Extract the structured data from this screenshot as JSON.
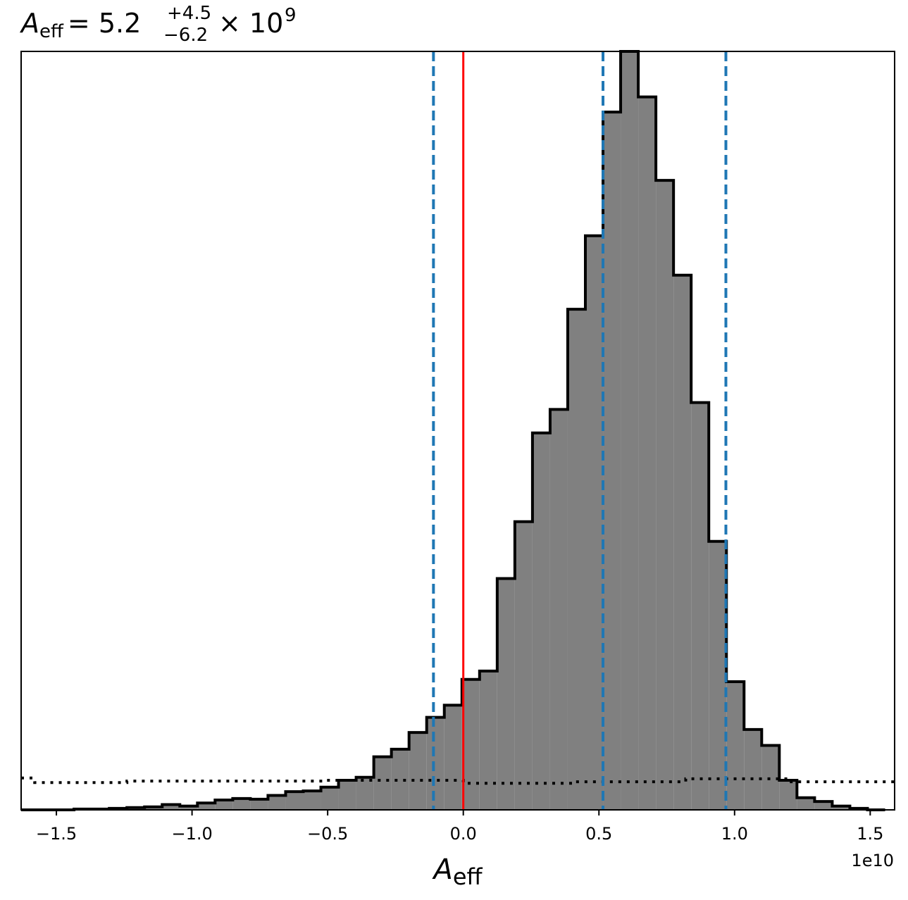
{
  "chart_data": {
    "type": "histogram",
    "title": {
      "symbol": "A",
      "subscript": "eff",
      "equals": "= 5.2",
      "upper": "+4.5",
      "lower": "−6.2",
      "times": "× 10",
      "exponent": "9"
    },
    "xlabel": {
      "symbol": "A",
      "subscript": "eff"
    },
    "x_offset_label": "1e10",
    "x_scale": 10000000000.0,
    "xlim": [
      -1.63,
      1.59
    ],
    "ylim": [
      0,
      1000
    ],
    "x_ticks": [
      {
        "value": -1.5,
        "label": "−1.5"
      },
      {
        "value": -1.0,
        "label": "−1.0"
      },
      {
        "value": -0.5,
        "label": "−0.5"
      },
      {
        "value": 0.0,
        "label": "0.0"
      },
      {
        "value": 0.5,
        "label": "0.5"
      },
      {
        "value": 1.0,
        "label": "1.0"
      },
      {
        "value": 1.5,
        "label": "1.5"
      }
    ],
    "y_ticks_visible": false,
    "grid": false,
    "legend": "none",
    "histogram": {
      "bin_edges": [
        -1.63,
        -1.565,
        -1.5,
        -1.435,
        -1.37,
        -1.305,
        -1.24,
        -1.175,
        -1.11,
        -1.045,
        -0.98,
        -0.915,
        -0.85,
        -0.785,
        -0.72,
        -0.655,
        -0.59,
        -0.525,
        -0.46,
        -0.395,
        -0.33,
        -0.265,
        -0.2,
        -0.135,
        -0.07,
        -0.005,
        0.06,
        0.125,
        0.19,
        0.255,
        0.32,
        0.385,
        0.45,
        0.515,
        0.58,
        0.645,
        0.71,
        0.775,
        0.84,
        0.905,
        0.97,
        1.035,
        1.1,
        1.165,
        1.23,
        1.295,
        1.36,
        1.425,
        1.49,
        1.555
      ],
      "counts": [
        0,
        0,
        0,
        1,
        1,
        2,
        3,
        4,
        7,
        5,
        9,
        13,
        15,
        14,
        19,
        24,
        25,
        30,
        39,
        43,
        70,
        80,
        102,
        122,
        138,
        172,
        183,
        305,
        380,
        497,
        528,
        660,
        757,
        920,
        1000,
        940,
        830,
        705,
        537,
        354,
        169,
        106,
        85,
        39,
        16,
        11,
        5,
        2,
        0
      ],
      "fill_color": "#808080",
      "edge_color": "#000000"
    },
    "prior_counts": [
      40,
      37,
      37,
      37,
      37,
      37,
      37,
      37,
      38,
      38,
      38,
      38,
      38,
      38,
      38,
      38,
      38,
      38,
      38,
      38,
      38,
      38,
      38,
      38,
      38,
      38,
      38,
      38,
      38,
      36,
      36,
      36,
      36,
      36,
      38,
      38,
      38,
      38,
      38,
      38,
      38,
      42,
      42,
      42,
      42,
      42,
      40,
      38,
      38,
      38
    ],
    "prior_bin_edges": [
      -1.63,
      -1.58,
      -1.24,
      -0.52,
      -0.46,
      0.0,
      0.41,
      0.82,
      1.2,
      1.59
    ],
    "prior_step_counts": [
      42,
      36,
      38,
      39,
      39,
      35,
      37,
      41,
      37
    ],
    "vlines": [
      {
        "x": -0.11,
        "style": "dashed",
        "color": "#1f77b4"
      },
      {
        "x": 0.515,
        "style": "dashed",
        "color": "#1f77b4"
      },
      {
        "x": 0.968,
        "style": "dashed",
        "color": "#1f77b4"
      },
      {
        "x": 0.0,
        "style": "solid",
        "color": "#ff0000"
      }
    ]
  }
}
